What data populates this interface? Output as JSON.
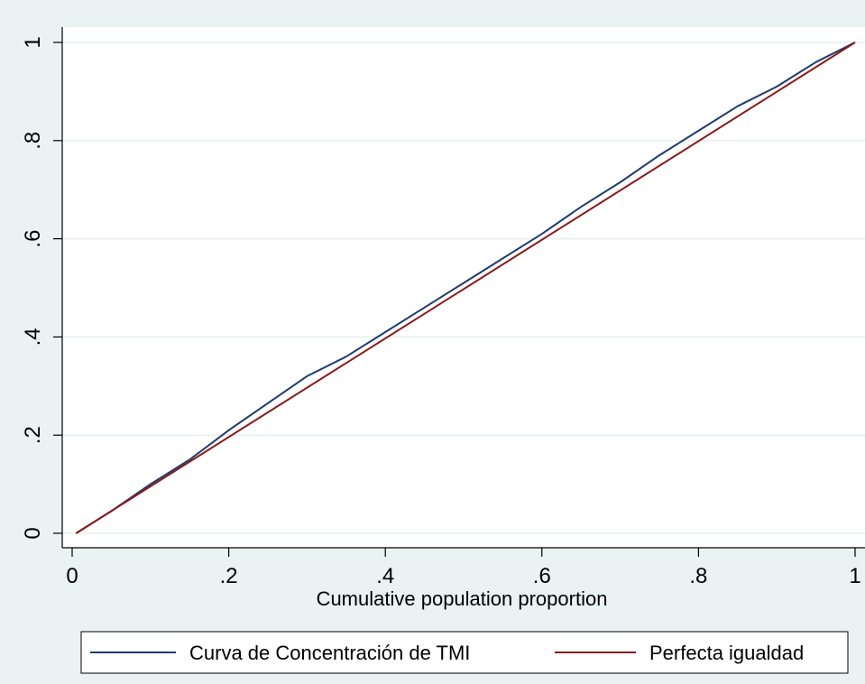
{
  "chart_data": {
    "type": "line",
    "title": "",
    "xlabel": "Cumulative population proportion",
    "ylabel": "",
    "xlim": [
      0,
      1
    ],
    "ylim": [
      0,
      1
    ],
    "x_ticks": [
      0,
      0.2,
      0.4,
      0.6,
      0.8,
      1
    ],
    "x_tick_labels": [
      "0",
      ".2",
      ".4",
      ".6",
      ".8",
      "1"
    ],
    "y_ticks": [
      0,
      0.2,
      0.4,
      0.6,
      0.8,
      1
    ],
    "y_tick_labels": [
      "0",
      ".2",
      ".4",
      ".6",
      ".8",
      "1"
    ],
    "grid": "horizontal",
    "legend_position": "bottom",
    "series": [
      {
        "name": "Curva de Concentración de TMI",
        "color": "#1f3b6e",
        "x": [
          0.005,
          0.05,
          0.1,
          0.15,
          0.2,
          0.25,
          0.3,
          0.35,
          0.4,
          0.45,
          0.5,
          0.55,
          0.6,
          0.65,
          0.7,
          0.75,
          0.8,
          0.85,
          0.9,
          0.95,
          1.0
        ],
        "y": [
          0.0,
          0.045,
          0.1,
          0.15,
          0.21,
          0.265,
          0.32,
          0.36,
          0.41,
          0.46,
          0.51,
          0.56,
          0.61,
          0.665,
          0.715,
          0.77,
          0.82,
          0.87,
          0.91,
          0.96,
          1.0
        ]
      },
      {
        "name": "Perfecta igualdad",
        "color": "#8b1a1a",
        "x": [
          0.005,
          1.0
        ],
        "y": [
          0.0,
          1.0
        ]
      }
    ]
  }
}
